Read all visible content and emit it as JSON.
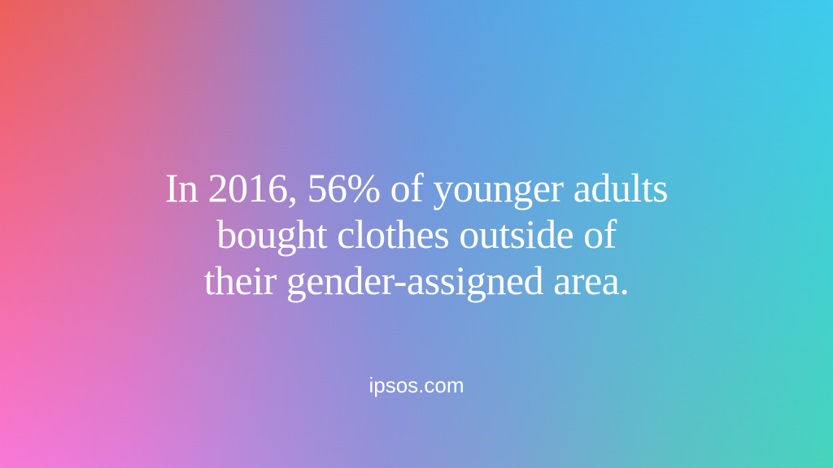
{
  "quote": {
    "lines": [
      "In 2016, 56% of younger adults",
      "bought clothes outside of",
      "their gender-assigned area."
    ]
  },
  "attribution": {
    "text": "ipsos.com"
  },
  "colors": {
    "text": "#ffffff",
    "gradient_top_left": "#ec5f58",
    "gradient_top_right": "#3ecbec",
    "gradient_bottom_left": "#fa78d8",
    "gradient_bottom_right": "#47d5bc",
    "gradient_center": "#7097dd"
  }
}
